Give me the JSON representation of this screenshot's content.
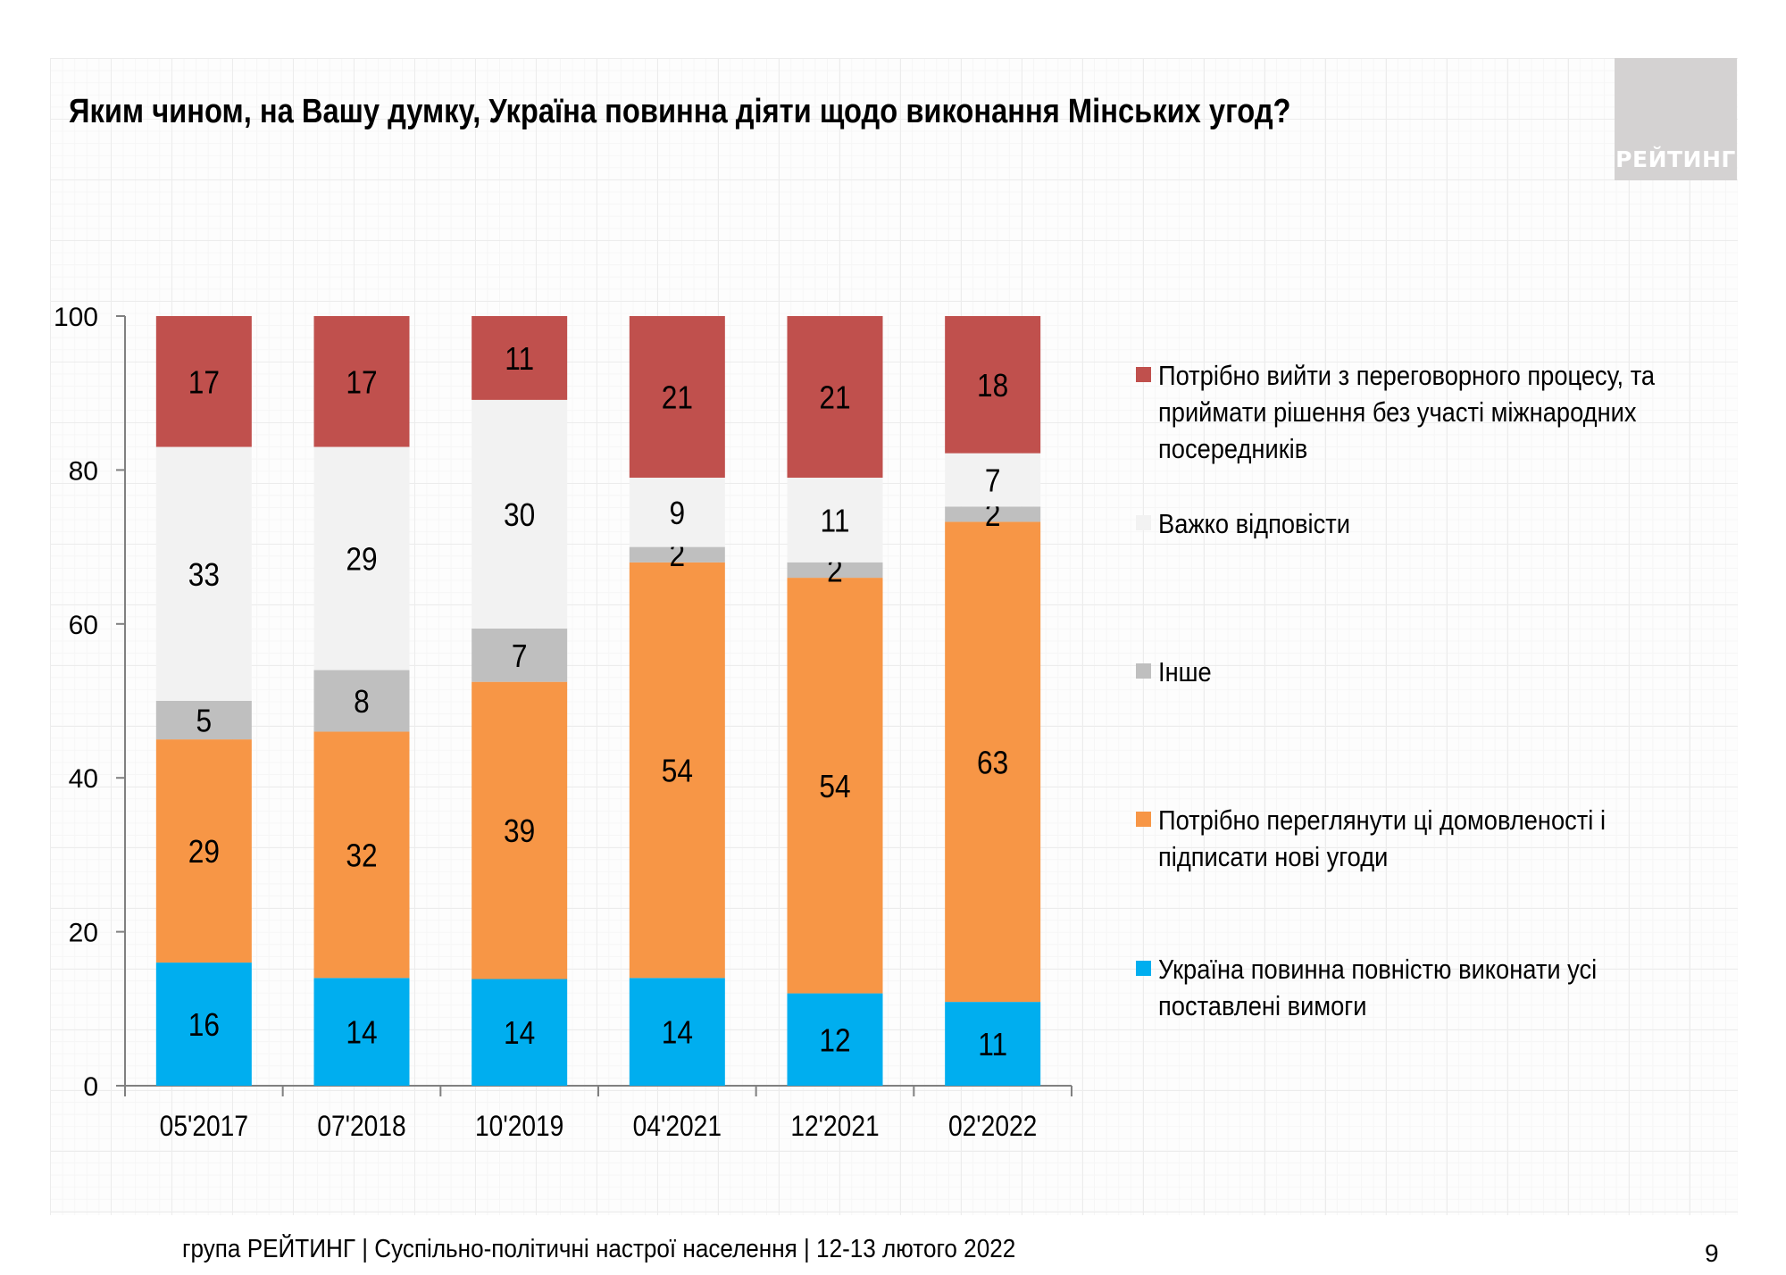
{
  "title": "Яким чином, на Вашу думку, Україна повинна діяти щодо виконання Мінських угод?",
  "logo_text": "РЕЙТИНГ",
  "footer": "група РЕЙТИНГ | Суспільно-політичні настрої населення | 12-13 лютого 2022",
  "page_number": "9",
  "chart_data": {
    "type": "bar",
    "stacked": true,
    "title": "Яким чином, на Вашу думку, Україна повинна діяти щодо виконання Мінських угод?",
    "xlabel": "",
    "ylabel": "",
    "ylim": [
      0,
      100
    ],
    "yticks": [
      0,
      20,
      40,
      60,
      80,
      100
    ],
    "grid": false,
    "legend_position": "right",
    "categories": [
      "05'2017",
      "07'2018",
      "10'2019",
      "04'2021",
      "12'2021",
      "02'2022"
    ],
    "series": [
      {
        "name": "Україна повинна повністю виконати усі поставлені вимоги",
        "color": "#00aeef",
        "values": [
          16,
          14,
          14,
          14,
          12,
          11
        ]
      },
      {
        "name": "Потрібно переглянути ці домовленості і підписати нові угоди",
        "color": "#f79646",
        "values": [
          29,
          32,
          39,
          54,
          54,
          63
        ]
      },
      {
        "name": "Інше",
        "color": "#bfbfbf",
        "values": [
          5,
          8,
          7,
          2,
          2,
          2
        ]
      },
      {
        "name": "Важко відповісти",
        "color": "#f2f2f2",
        "values": [
          33,
          29,
          30,
          9,
          11,
          7
        ]
      },
      {
        "name": "Потрібно вийти з переговорного процесу, та приймати рішення без участі міжнародних посередників",
        "color": "#c0504d",
        "values": [
          17,
          17,
          11,
          21,
          21,
          18
        ]
      }
    ],
    "legend_order": [
      4,
      3,
      2,
      1,
      0
    ]
  }
}
